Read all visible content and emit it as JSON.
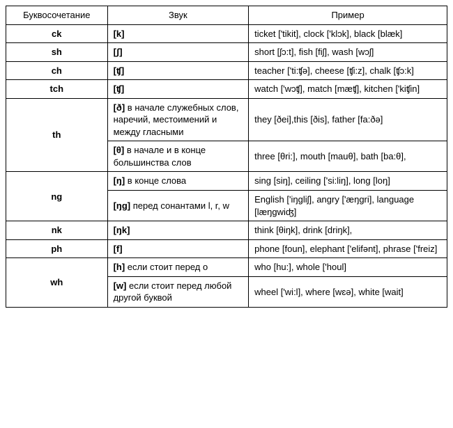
{
  "headers": {
    "col1": "Буквосочетание",
    "col2": "Звук",
    "col3": "Пример"
  },
  "rows": [
    {
      "combo": "ck",
      "sound": "[k]",
      "note": "",
      "example": "ticket ['tikit], clock ['klɔk], black [blæk]"
    },
    {
      "combo": "sh",
      "sound": "[ʃ]",
      "note": "",
      "example": "short [ʃɔ:t], fish [fiʃ], wash [wɔʃ]"
    },
    {
      "combo": "ch",
      "sound": "[ʧ]",
      "note": "",
      "example": "teacher ['ti:ʧə], cheese [ʧi:z], chalk [ʧɔ:k]"
    },
    {
      "combo": "tch",
      "sound": "[ʧ]",
      "note": "",
      "example": "watch ['wɔʧ], match [mæʧ], kitchen ['kiʧin]"
    },
    {
      "combo": "th",
      "sound": "[ð]",
      "note": " в начале служебных слов, наречий, местоимений и между гласными",
      "example": "they [ðei],this [ðis], father [fa:ðə]",
      "rowspan": 2
    },
    {
      "sound": "[θ]",
      "note": " в начале и в конце большинства слов",
      "example": "three [θri:], mouth [mauθ], bath [ba:θ],"
    },
    {
      "combo": "ng",
      "sound": "[ŋ]",
      "note": " в конце слова",
      "example": "sing [siŋ], ceiling ['si:liŋ], long [loŋ]",
      "rowspan": 2
    },
    {
      "sound": "[ŋg]",
      "note": " перед сонантами l, r, w",
      "example": "English ['iŋgliʃ], angry ['æŋgri], language [læŋgwiʤ]"
    },
    {
      "combo": "nk",
      "sound": "[ŋk]",
      "note": "",
      "example": "think [θiŋk], drink [driŋk],"
    },
    {
      "combo": "ph",
      "sound": "[f]",
      "note": "",
      "example": "phone [foun], elephant ['elifənt], phrase ['freiz]"
    },
    {
      "combo": "wh",
      "sound": "[h]",
      "note": " если стоит перед o",
      "example": "who [hu:], whole ['houl]",
      "rowspan": 2
    },
    {
      "sound": "[w]",
      "note": " если стоит перед любой другой буквой",
      "example": "wheel ['wi:l], where [wɛə], white [wait]"
    }
  ]
}
